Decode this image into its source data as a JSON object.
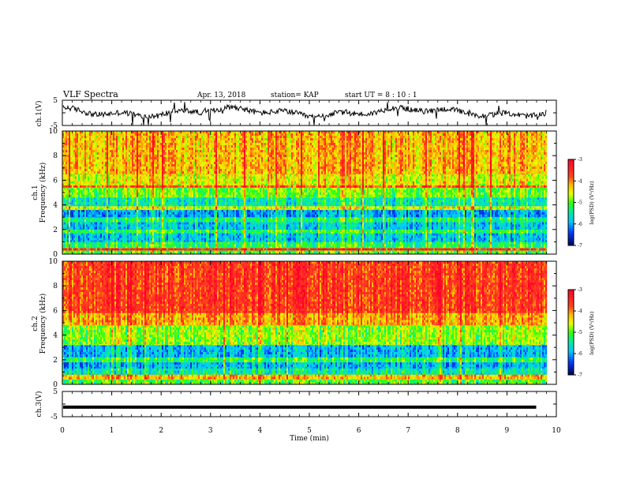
{
  "header": {
    "title": "VLF Spectra",
    "date": "Apr. 13, 2018",
    "station": "station= KAP",
    "start_ut": "start UT = 8 : 10 : 1"
  },
  "panels": {
    "ch1_wave": {
      "ylabel": "ch.1(V)"
    },
    "ch1_spec": {
      "ylabel_ch": "ch.1",
      "ylabel": "Frequency (kHz)"
    },
    "ch2_spec": {
      "ylabel_ch": "ch.2",
      "ylabel": "Frequency (kHz)"
    },
    "ch3_wave": {
      "ylabel": "ch.3(V)"
    }
  },
  "colorbar": {
    "label": "log(PSD) (V²/Hz)",
    "ticks": [
      "-3",
      "-4",
      "-5",
      "-6",
      "-7"
    ],
    "colors": [
      "#ff2020",
      "#ffaa00",
      "#ffff00",
      "#00ff00",
      "#00ffff",
      "#0044ff",
      "#000080"
    ]
  },
  "chart_data": [
    {
      "type": "line",
      "name": "ch.1 waveform",
      "ylabel": "ch.1(V)",
      "ylim": [
        -5,
        5
      ],
      "yticks": [
        "5",
        "-5"
      ],
      "xlim": [
        0,
        10
      ],
      "approx_level": 0.3
    },
    {
      "type": "heatmap",
      "name": "ch.1 spectrogram",
      "ylabel": "Frequency (kHz)",
      "ylim": [
        0,
        10
      ],
      "xlim": [
        0,
        9.8
      ],
      "yticks": [
        "0",
        "2",
        "4",
        "6",
        "8",
        "10"
      ],
      "bands_khz": [
        {
          "from": 0.0,
          "to": 0.3,
          "level": -5.0
        },
        {
          "from": 0.3,
          "to": 0.5,
          "level": -3.5
        },
        {
          "from": 0.5,
          "to": 1.0,
          "level": -5.2
        },
        {
          "from": 1.0,
          "to": 1.7,
          "level": -5.8
        },
        {
          "from": 1.7,
          "to": 2.0,
          "level": -5.2
        },
        {
          "from": 2.0,
          "to": 2.6,
          "level": -5.8
        },
        {
          "from": 2.6,
          "to": 3.0,
          "level": -5.3
        },
        {
          "from": 3.0,
          "to": 3.6,
          "level": -6.0
        },
        {
          "from": 3.6,
          "to": 3.9,
          "level": -4.6
        },
        {
          "from": 3.9,
          "to": 4.6,
          "level": -5.5
        },
        {
          "from": 4.6,
          "to": 5.4,
          "level": -4.9
        },
        {
          "from": 5.4,
          "to": 5.6,
          "level": -3.8
        },
        {
          "from": 5.6,
          "to": 6.5,
          "level": -4.5
        },
        {
          "from": 6.5,
          "to": 10.0,
          "level": -4.2
        }
      ]
    },
    {
      "type": "heatmap",
      "name": "ch.2 spectrogram",
      "ylabel": "Frequency (kHz)",
      "ylim": [
        0,
        10
      ],
      "xlim": [
        0,
        9.8
      ],
      "yticks": [
        "0",
        "2",
        "4",
        "6",
        "8",
        "10"
      ],
      "bands_khz": [
        {
          "from": 0.0,
          "to": 0.4,
          "level": -5.0
        },
        {
          "from": 0.4,
          "to": 0.8,
          "level": -4.2
        },
        {
          "from": 0.8,
          "to": 1.3,
          "level": -5.5
        },
        {
          "from": 1.3,
          "to": 1.8,
          "level": -5.9
        },
        {
          "from": 1.8,
          "to": 2.2,
          "level": -5.2
        },
        {
          "from": 2.2,
          "to": 3.2,
          "level": -5.9
        },
        {
          "from": 3.2,
          "to": 4.8,
          "level": -4.8
        },
        {
          "from": 4.8,
          "to": 5.8,
          "level": -4.1
        },
        {
          "from": 5.8,
          "to": 10.0,
          "level": -3.6
        }
      ]
    },
    {
      "type": "line",
      "name": "ch.3 waveform",
      "ylabel": "ch.3(V)",
      "ylim": [
        -5,
        5
      ],
      "yticks": [
        "5",
        "-5"
      ],
      "xlim": [
        0,
        9.8
      ],
      "approx_level": -1.2
    }
  ],
  "xaxis": {
    "label": "Time (min)",
    "ticks": [
      "0",
      "1",
      "2",
      "3",
      "4",
      "5",
      "6",
      "7",
      "8",
      "9",
      "10"
    ],
    "xlim": [
      0,
      10
    ]
  }
}
